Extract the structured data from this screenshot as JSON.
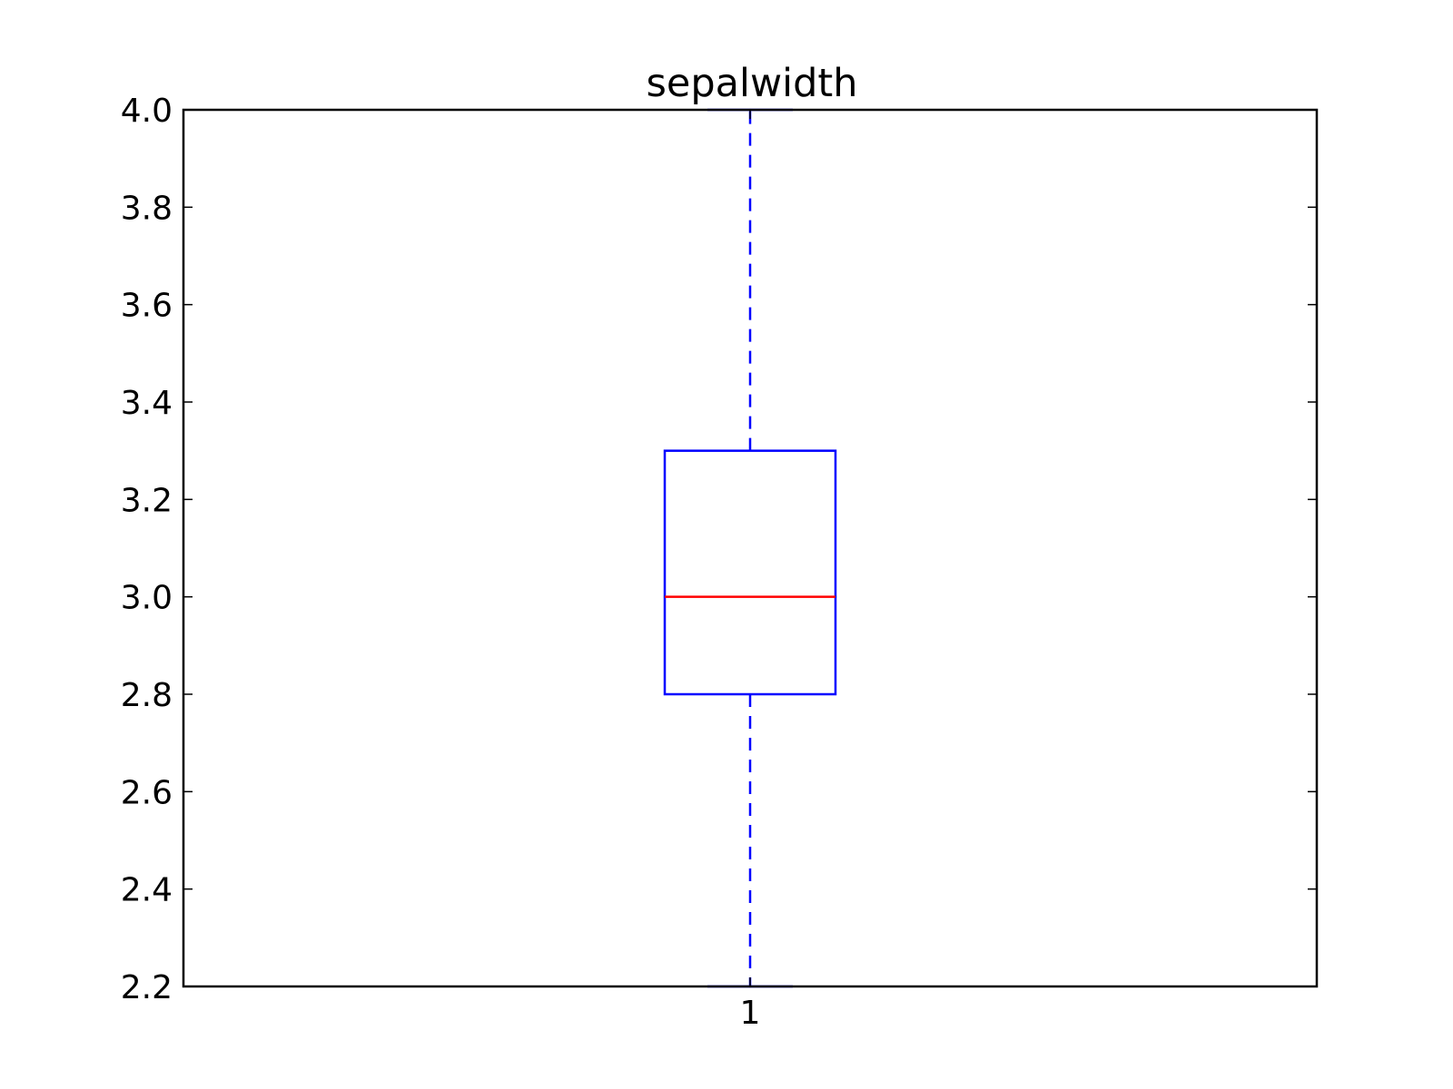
{
  "chart_data": {
    "type": "box",
    "title": "sepalwidth",
    "xlabel": "",
    "ylabel": "",
    "categories": [
      "1"
    ],
    "ylim": [
      2.2,
      4.0
    ],
    "yticks": [
      "2.2",
      "2.4",
      "2.6",
      "2.8",
      "3.0",
      "3.2",
      "3.4",
      "3.6",
      "3.8",
      "4.0"
    ],
    "boxes": [
      {
        "category": "1",
        "whisker_low": 2.2,
        "q1": 2.8,
        "median": 3.0,
        "q3": 3.3,
        "whisker_high": 4.0
      }
    ],
    "grid": false,
    "colors": {
      "box": "#0000ff",
      "whisker": "#0000ff",
      "median": "#ff0000",
      "axes": "#000000"
    }
  }
}
